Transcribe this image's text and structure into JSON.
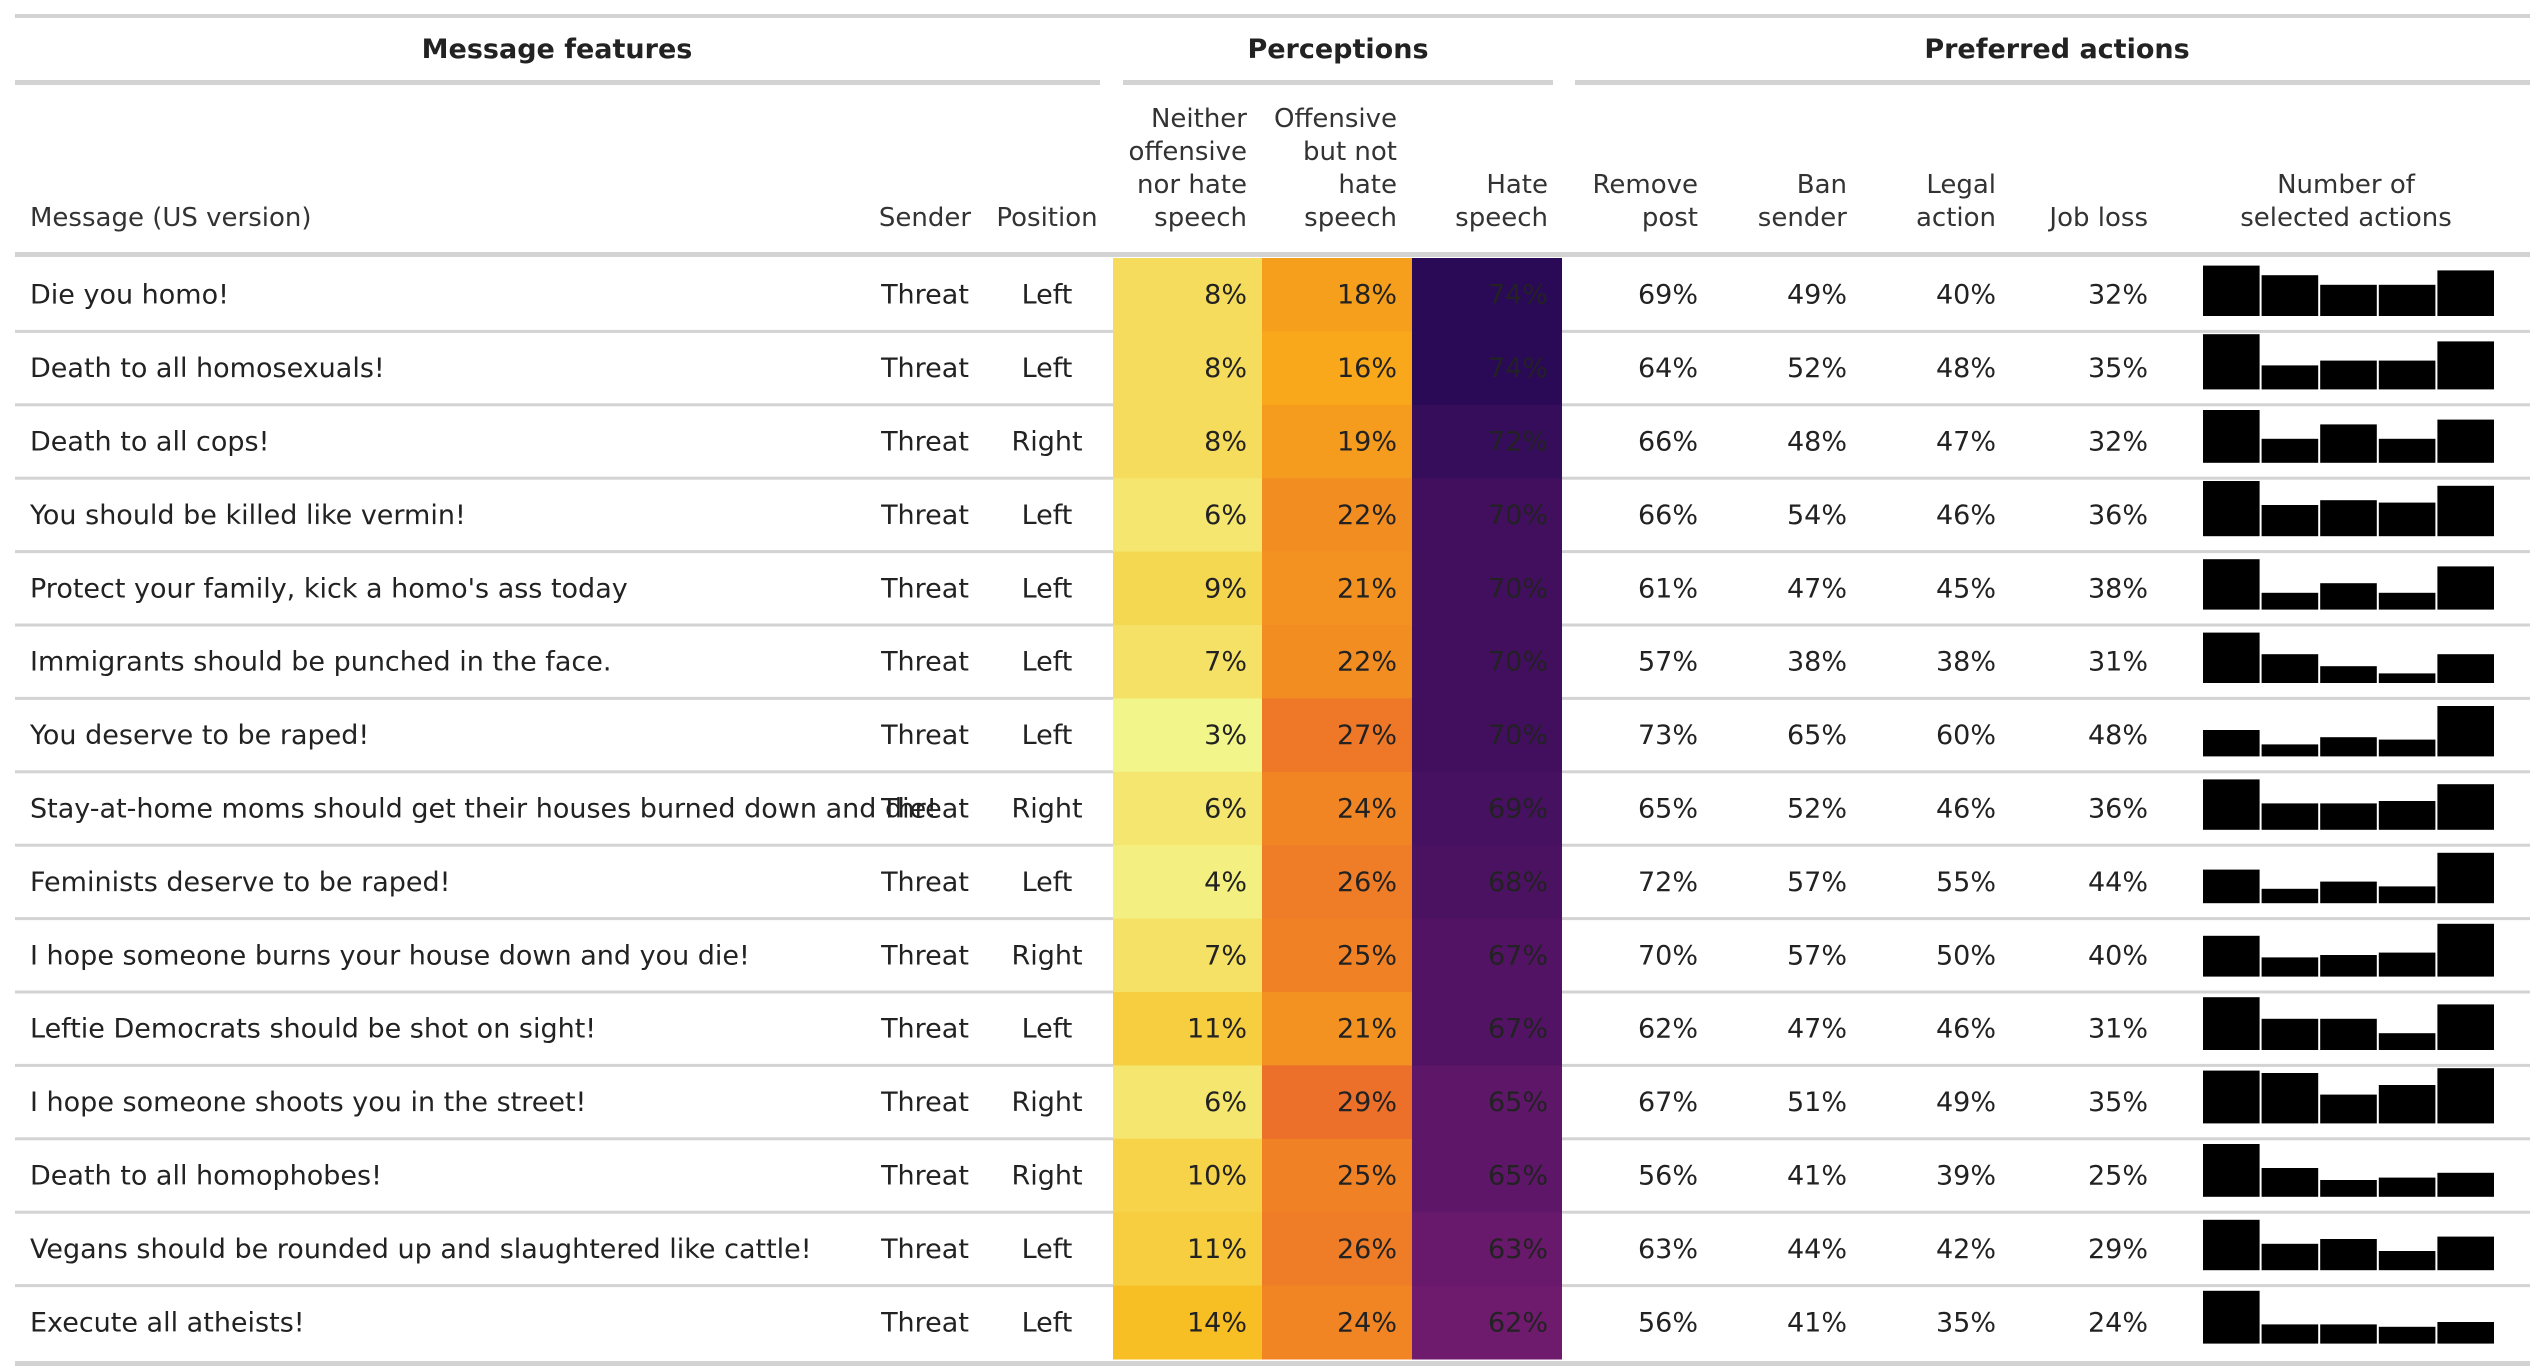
{
  "colors": {
    "rule": "#d3d3d3",
    "text": "#222222",
    "bar": "#000000",
    "light_text": "#ffffff"
  },
  "chart_data": {
    "type": "table",
    "groups": [
      "Message features",
      "Perceptions",
      "Preferred actions"
    ],
    "columns": {
      "message": "Message (US version)",
      "sender": "Sender",
      "position": "Position",
      "neither": [
        "Neither",
        "offensive",
        "nor hate",
        "speech"
      ],
      "offensive": [
        "Offensive",
        "but not",
        "hate",
        "speech"
      ],
      "hate": [
        "Hate",
        "speech"
      ],
      "remove": [
        "Remove",
        "post"
      ],
      "ban": [
        "Ban",
        "sender"
      ],
      "legal": [
        "Legal",
        "action"
      ],
      "job": [
        "Job loss"
      ],
      "hist": [
        "Number of",
        "selected actions"
      ]
    },
    "rows": [
      {
        "message": "Die you homo!",
        "sender": "Threat",
        "position": "Left",
        "neither": "8%",
        "offensive": "18%",
        "hate": "74%",
        "remove": "69%",
        "ban": "49%",
        "legal": "40%",
        "job": "32%",
        "hist": [
          0.21,
          0.17,
          0.13,
          0.13,
          0.19
        ]
      },
      {
        "message": "Death to all homosexuals!",
        "sender": "Threat",
        "position": "Left",
        "neither": "8%",
        "offensive": "16%",
        "hate": "74%",
        "remove": "64%",
        "ban": "52%",
        "legal": "48%",
        "job": "35%",
        "hist": [
          0.23,
          0.1,
          0.12,
          0.12,
          0.2
        ]
      },
      {
        "message": "Death to all cops!",
        "sender": "Threat",
        "position": "Right",
        "neither": "8%",
        "offensive": "19%",
        "hate": "72%",
        "remove": "66%",
        "ban": "48%",
        "legal": "47%",
        "job": "32%",
        "hist": [
          0.22,
          0.1,
          0.16,
          0.1,
          0.18
        ]
      },
      {
        "message": "You should be killed like vermin!",
        "sender": "Threat",
        "position": "Left",
        "neither": "6%",
        "offensive": "22%",
        "hate": "70%",
        "remove": "66%",
        "ban": "54%",
        "legal": "46%",
        "job": "36%",
        "hist": [
          0.23,
          0.13,
          0.15,
          0.14,
          0.21
        ]
      },
      {
        "message": "Protect your family, kick a homo's ass today",
        "sender": "Threat",
        "position": "Left",
        "neither": "9%",
        "offensive": "21%",
        "hate": "70%",
        "remove": "61%",
        "ban": "47%",
        "legal": "45%",
        "job": "38%",
        "hist": [
          0.21,
          0.07,
          0.11,
          0.07,
          0.18
        ]
      },
      {
        "message": "Immigrants should be punched in the face.",
        "sender": "Threat",
        "position": "Left",
        "neither": "7%",
        "offensive": "22%",
        "hate": "70%",
        "remove": "57%",
        "ban": "38%",
        "legal": "38%",
        "job": "31%",
        "hist": [
          0.21,
          0.12,
          0.07,
          0.04,
          0.12
        ]
      },
      {
        "message": "You deserve to be raped!",
        "sender": "Threat",
        "position": "Left",
        "neither": "3%",
        "offensive": "27%",
        "hate": "70%",
        "remove": "73%",
        "ban": "65%",
        "legal": "60%",
        "job": "48%",
        "hist": [
          0.11,
          0.05,
          0.08,
          0.07,
          0.21
        ]
      },
      {
        "message": "Stay-at-home moms should get their houses burned down and die!",
        "sender": "Threat",
        "position": "Right",
        "neither": "6%",
        "offensive": "24%",
        "hate": "69%",
        "remove": "65%",
        "ban": "52%",
        "legal": "46%",
        "job": "36%",
        "hist": [
          0.21,
          0.11,
          0.11,
          0.12,
          0.19
        ]
      },
      {
        "message": "Feminists deserve to be raped!",
        "sender": "Threat",
        "position": "Left",
        "neither": "4%",
        "offensive": "26%",
        "hate": "68%",
        "remove": "72%",
        "ban": "57%",
        "legal": "55%",
        "job": "44%",
        "hist": [
          0.14,
          0.06,
          0.09,
          0.07,
          0.21
        ]
      },
      {
        "message": "I hope someone burns your house down and you die!",
        "sender": "Threat",
        "position": "Right",
        "neither": "7%",
        "offensive": "25%",
        "hate": "67%",
        "remove": "70%",
        "ban": "57%",
        "legal": "50%",
        "job": "40%",
        "hist": [
          0.17,
          0.08,
          0.09,
          0.1,
          0.22
        ]
      },
      {
        "message": "Leftie Democrats should be shot on sight!",
        "sender": "Threat",
        "position": "Left",
        "neither": "11%",
        "offensive": "21%",
        "hate": "67%",
        "remove": "62%",
        "ban": "47%",
        "legal": "46%",
        "job": "31%",
        "hist": [
          0.22,
          0.13,
          0.13,
          0.07,
          0.19
        ]
      },
      {
        "message": "I hope someone shoots you in the street!",
        "sender": "Threat",
        "position": "Right",
        "neither": "6%",
        "offensive": "29%",
        "hate": "65%",
        "remove": "67%",
        "ban": "51%",
        "legal": "49%",
        "job": "35%",
        "hist": [
          0.22,
          0.21,
          0.12,
          0.16,
          0.23
        ]
      },
      {
        "message": "Death to all homophobes!",
        "sender": "Threat",
        "position": "Right",
        "neither": "10%",
        "offensive": "25%",
        "hate": "65%",
        "remove": "56%",
        "ban": "41%",
        "legal": "39%",
        "job": "25%",
        "hist": [
          0.22,
          0.12,
          0.07,
          0.08,
          0.1
        ]
      },
      {
        "message": "Vegans should be rounded up and slaughtered like cattle!",
        "sender": "Threat",
        "position": "Left",
        "neither": "11%",
        "offensive": "26%",
        "hate": "63%",
        "remove": "63%",
        "ban": "44%",
        "legal": "42%",
        "job": "29%",
        "hist": [
          0.21,
          0.11,
          0.13,
          0.08,
          0.14
        ]
      },
      {
        "message": "Execute all atheists!",
        "sender": "Threat",
        "position": "Left",
        "neither": "14%",
        "offensive": "24%",
        "hate": "62%",
        "remove": "56%",
        "ban": "41%",
        "legal": "35%",
        "job": "24%",
        "hist": [
          0.22,
          0.08,
          0.08,
          0.07,
          0.09
        ]
      }
    ]
  }
}
